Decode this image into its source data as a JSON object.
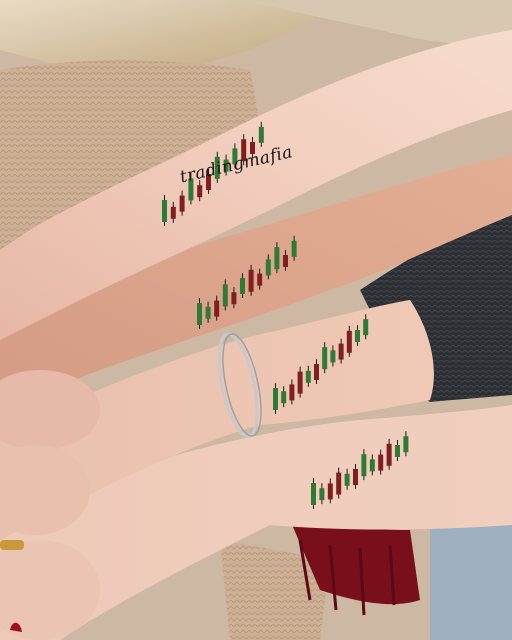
{
  "photo": {
    "subject": "four-forearms-with-candlestick-chart-tattoos",
    "tattoo_text": "tradingmafia",
    "colors": {
      "bullish_candle": "#2f7a34",
      "bearish_candle": "#7f1f22",
      "wick": "#1b1b1b",
      "skin_light": "#f2d4c4",
      "skin_mid": "#e8b9a2",
      "skin_tan": "#d9a588",
      "beige_sweater": "#cfb196",
      "dark_sweater": "#2e3135",
      "red_scarf": "#7a0f1c",
      "bracelet": "#c9c9cc"
    },
    "tattoos": [
      {
        "name": "tattoo-arm-1",
        "candles": [
          "g",
          "r",
          "r",
          "g",
          "r",
          "r",
          "g",
          "g",
          "g",
          "r",
          "r",
          "g"
        ]
      },
      {
        "name": "tattoo-arm-2",
        "candles": [
          "g",
          "g",
          "r",
          "g",
          "r",
          "g",
          "r",
          "r",
          "g",
          "g",
          "r",
          "g"
        ]
      },
      {
        "name": "tattoo-arm-3",
        "candles": [
          "g",
          "g",
          "r",
          "r",
          "g",
          "r",
          "g",
          "g",
          "r",
          "r",
          "g",
          "g"
        ]
      },
      {
        "name": "tattoo-arm-4",
        "candles": [
          "g",
          "g",
          "r",
          "r",
          "g",
          "r",
          "g",
          "g",
          "r",
          "r",
          "g",
          "g"
        ]
      }
    ]
  }
}
